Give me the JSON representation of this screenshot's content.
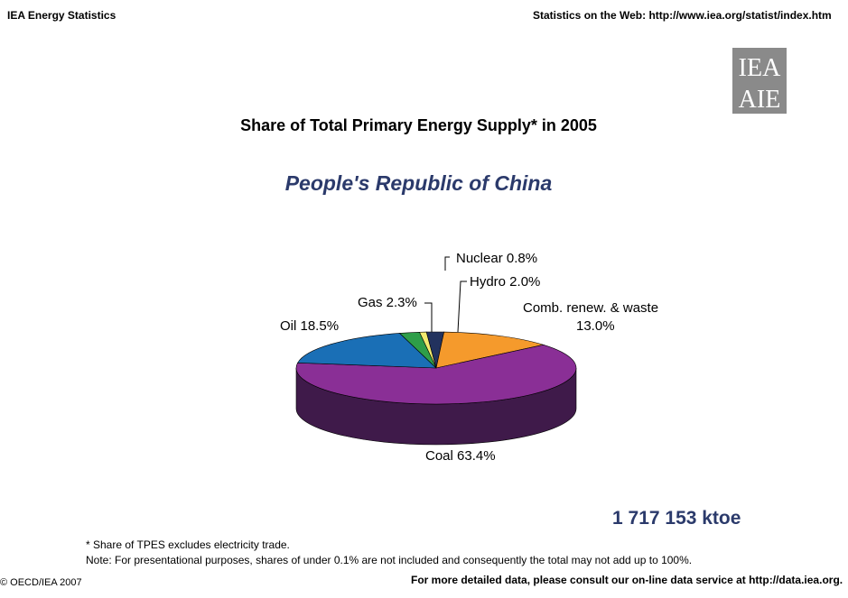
{
  "header": {
    "left": "IEA Energy Statistics",
    "right": "Statistics on the Web: http://www.iea.org/statist/index.htm"
  },
  "logo": {
    "top": "IEA",
    "bottom": "AIE"
  },
  "chart_data": {
    "type": "pie",
    "title": "Share of Total Primary Energy Supply* in 2005",
    "subtitle": "People's Republic of China",
    "slices": [
      {
        "label": "Nuclear",
        "value": 0.8,
        "display": "Nuclear 0.8%",
        "color": "#f2ea6e",
        "side": "#8a8540"
      },
      {
        "label": "Hydro",
        "value": 2.0,
        "display": "Hydro 2.0%",
        "color": "#22325e",
        "side": "#141d37"
      },
      {
        "label": "Comb. renew. & waste",
        "value": 13.0,
        "display_line1": "Comb. renew. & waste",
        "display_line2": "13.0%",
        "color": "#f59a2c",
        "side": "#8f5a1a"
      },
      {
        "label": "Coal",
        "value": 63.4,
        "display": "Coal 63.4%",
        "color": "#8a2f96",
        "side": "#3f1a4a"
      },
      {
        "label": "Oil",
        "value": 18.5,
        "display": "Oil 18.5%",
        "color": "#1a6fb6",
        "side": "#0e3e66"
      },
      {
        "label": "Gas",
        "value": 2.3,
        "display": "Gas 2.3%",
        "color": "#2e9e49",
        "side": "#1b5e2b"
      }
    ]
  },
  "total": "1 717 153  ktoe",
  "notes": {
    "line1": "* Share of TPES excludes electricity trade.",
    "line2": "Note: For presentational purposes, shares of under 0.1% are not included and consequently the total may not add up to 100%."
  },
  "footer": {
    "left": "© OECD/IEA 2007",
    "right": "For more detailed data, please consult our on-line data service at http://data.iea.org."
  }
}
